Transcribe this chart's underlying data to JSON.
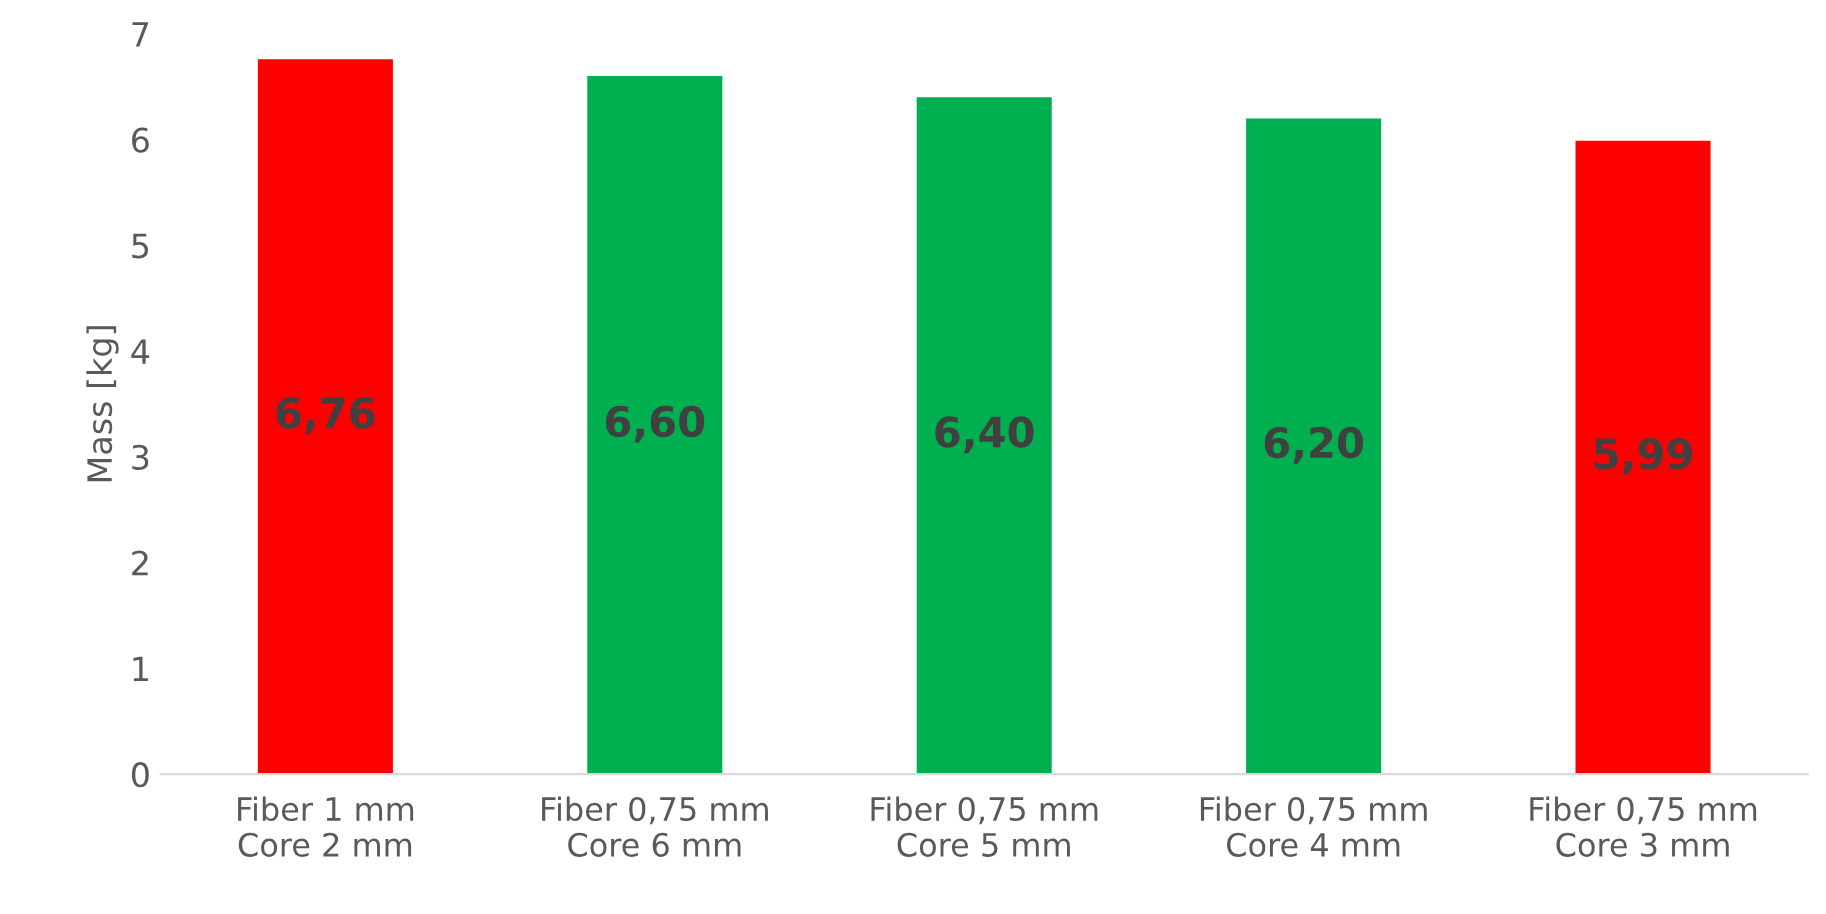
{
  "chart_data": {
    "type": "bar",
    "ylabel": "Mass [kg]",
    "categories": [
      "Fiber 1 mm\nCore 2 mm",
      "Fiber 0,75 mm\nCore 6 mm",
      "Fiber 0,75 mm\nCore 5 mm",
      "Fiber 0,75 mm\nCore 4 mm",
      "Fiber 0,75 mm\nCore 3 mm"
    ],
    "values": [
      6.76,
      6.6,
      6.4,
      6.2,
      5.99
    ],
    "colors": [
      "#ff0000",
      "#00b050",
      "#00b050",
      "#00b050",
      "#ff0000"
    ],
    "value_labels": [
      "6,76",
      "6,60",
      "6,40",
      "6,20",
      "5,99"
    ],
    "ylim": [
      0,
      7
    ],
    "yticks": [
      0,
      1,
      2,
      3,
      4,
      5,
      6,
      7
    ],
    "grid": false
  }
}
